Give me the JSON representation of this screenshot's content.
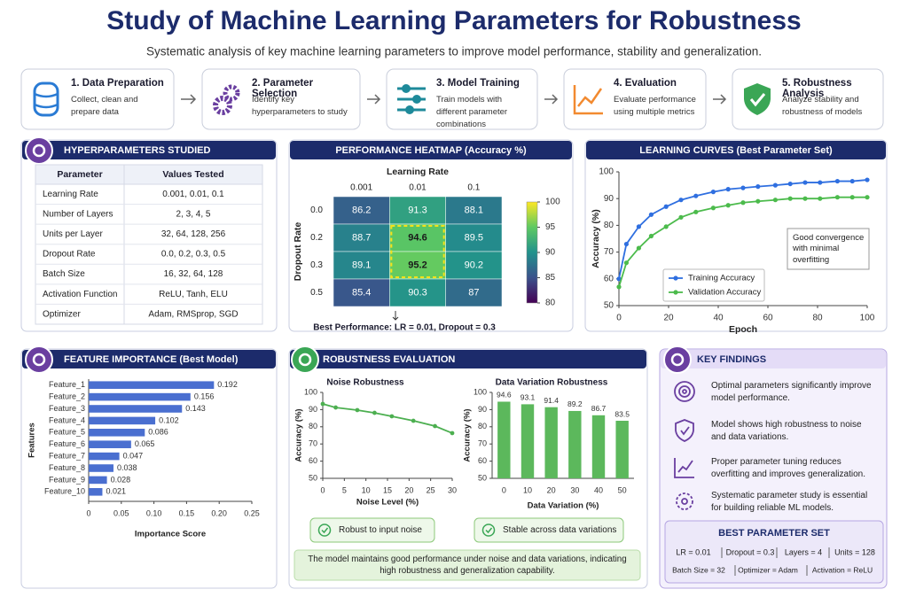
{
  "header": {
    "title": "Study of Machine Learning Parameters for Robustness",
    "subtitle": "Systematic analysis of key machine learning parameters to improve model performance, stability and generalization."
  },
  "steps": [
    {
      "title": "1. Data Preparation",
      "text": "Collect, clean and prepare data"
    },
    {
      "title": "2. Parameter Selection",
      "text": "Identify key hyperparameters to study"
    },
    {
      "title": "3. Model Training",
      "text": "Train models with different parameter combinations"
    },
    {
      "title": "4. Evaluation",
      "text": "Evaluate performance using multiple metrics"
    },
    {
      "title": "5. Robustness Analysis",
      "text": "Analyze stability and robustness of models"
    }
  ],
  "hyperparameters": {
    "title": "HYPERPARAMETERS STUDIED",
    "columns": [
      "Parameter",
      "Values Tested"
    ],
    "rows": [
      [
        "Learning Rate",
        "0.001, 0.01, 0.1"
      ],
      [
        "Number of Layers",
        "2, 3, 4, 5"
      ],
      [
        "Units per Layer",
        "32, 64, 128, 256"
      ],
      [
        "Dropout Rate",
        "0.0, 0.2, 0.3, 0.5"
      ],
      [
        "Batch Size",
        "16, 32, 64, 128"
      ],
      [
        "Activation Function",
        "ReLU, Tanh, ELU"
      ],
      [
        "Optimizer",
        "Adam, RMSprop, SGD"
      ]
    ]
  },
  "chart_data": [
    {
      "type": "heatmap",
      "title": "PERFORMANCE HEATMAP (Accuracy %)",
      "x_label": "Learning Rate",
      "y_label": "Dropout Rate",
      "x_categories": [
        "0.001",
        "0.01",
        "0.1"
      ],
      "y_categories": [
        "0.0",
        "0.2",
        "0.3",
        "0.5"
      ],
      "values": [
        [
          86.2,
          91.3,
          88.1
        ],
        [
          88.7,
          94.6,
          89.5
        ],
        [
          89.1,
          95.2,
          90.2
        ],
        [
          85.4,
          90.3,
          87.0
        ]
      ],
      "colormap": "viridis",
      "colorbar_lim": [
        80,
        100
      ],
      "colorbar_ticks": [
        80,
        85,
        90,
        95,
        100
      ],
      "annotation": "Best Performance: LR = 0.01, Dropout = 0.3"
    },
    {
      "type": "line",
      "title": "LEARNING CURVES (Best Parameter Set)",
      "x_label": "Epoch",
      "y_label": "Accuracy (%)",
      "x": [
        0,
        3,
        8,
        13,
        19,
        25,
        31,
        38,
        44,
        50,
        56,
        63,
        69,
        75,
        81,
        88,
        94,
        100
      ],
      "series": [
        {
          "name": "Training Accuracy",
          "color": "#2f6fe0",
          "values": [
            60,
            73,
            79.5,
            84,
            87,
            89.5,
            91,
            92.5,
            93.5,
            94,
            94.5,
            95,
            95.5,
            96,
            96,
            96.5,
            96.5,
            97
          ]
        },
        {
          "name": "Validation Accuracy",
          "color": "#4cbb4c",
          "values": [
            57,
            66,
            71.5,
            76,
            79.5,
            83,
            85,
            86.5,
            87.5,
            88.5,
            89,
            89.5,
            90,
            90,
            90,
            90.5,
            90.5,
            90.5
          ]
        }
      ],
      "xlim": [
        0,
        100
      ],
      "xticks": [
        0,
        20,
        40,
        60,
        80,
        100
      ],
      "ylim": [
        50,
        100
      ],
      "yticks": [
        50,
        60,
        70,
        80,
        90,
        100
      ],
      "grid": false,
      "legend": "lower left",
      "annotation": "Good convergence with minimal overfitting"
    },
    {
      "type": "barh",
      "title": "FEATURE IMPORTANCE (Best Model)",
      "x_label": "Importance Score",
      "y_label": "Features",
      "categories": [
        "Feature_1",
        "Feature_2",
        "Feature_3",
        "Feature_4",
        "Feature_5",
        "Feature_6",
        "Feature_7",
        "Feature_8",
        "Feature_9",
        "Feature_10"
      ],
      "values": [
        0.192,
        0.156,
        0.143,
        0.102,
        0.086,
        0.065,
        0.047,
        0.038,
        0.028,
        0.021
      ],
      "color": "#4a6fd0",
      "xlim": [
        0,
        0.25
      ],
      "xticks": [
        0,
        0.05,
        {
          "value": 0.1,
          "label": "0.10"
        },
        0.15,
        {
          "value": 0.2,
          "label": "0.20"
        },
        0.25
      ],
      "grid": false
    },
    {
      "type": "line",
      "title": "Noise Robustness",
      "x_label": "Noise Level (%)",
      "y_label": "Accuracy (%)",
      "x": [
        0,
        3,
        8,
        12,
        16,
        21,
        26,
        30
      ],
      "values": [
        93.3,
        91.2,
        89.7,
        88.1,
        86.1,
        83.5,
        80.4,
        76.3
      ],
      "color": "#4caf50",
      "xlim": [
        0,
        30
      ],
      "xticks": [
        0,
        5,
        10,
        15,
        20,
        25,
        30
      ],
      "ylim": [
        50,
        100
      ],
      "yticks": [
        50,
        60,
        70,
        80,
        90,
        100
      ],
      "grid": false
    },
    {
      "type": "bar",
      "title": "Data Variation Robustness",
      "x_label": "Data Variation (%)",
      "y_label": "Accuracy (%)",
      "categories": [
        "0",
        "10",
        "20",
        "30",
        "40",
        "50"
      ],
      "values": [
        94.6,
        93.1,
        91.4,
        89.2,
        86.7,
        83.5
      ],
      "color": "#5cb85c",
      "ylim": [
        50,
        100
      ],
      "yticks": [
        50,
        60,
        70,
        80,
        90,
        100
      ],
      "grid": false
    }
  ],
  "robustness": {
    "title": "ROBUSTNESS EVALUATION",
    "badges": [
      "Robust to input noise",
      "Stable across data variations"
    ],
    "note": "The model maintains good performance under noise and data variations, indicating high robustness and generalization capability."
  },
  "key_findings": {
    "title": "KEY FINDINGS",
    "items": [
      "Optimal parameters significantly improve model performance.",
      "Model shows high robustness to noise and data variations.",
      "Proper parameter tuning reduces overfitting and improves generalization.",
      "Systematic parameter study is essential for building reliable ML models."
    ],
    "best_parameter_set": {
      "title": "BEST PARAMETER SET",
      "items": [
        "LR = 0.01",
        "Dropout = 0.3",
        "Layers = 4",
        "Units = 128",
        "Batch Size = 32",
        "Optimizer = Adam",
        "Activation = ReLU"
      ]
    }
  }
}
